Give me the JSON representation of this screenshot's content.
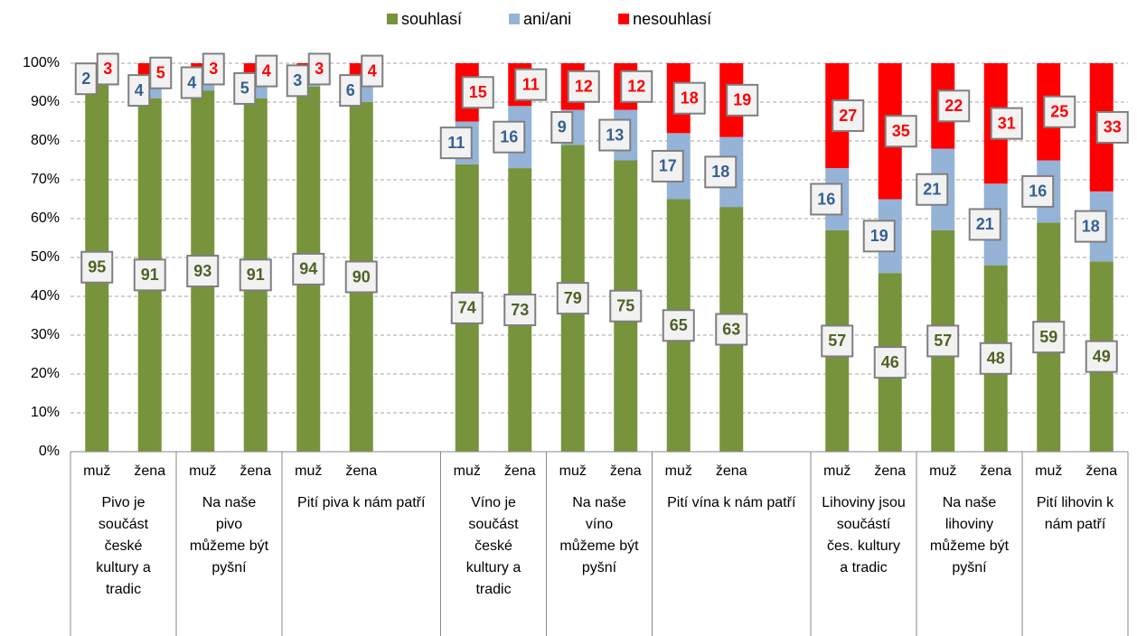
{
  "chart_data": {
    "type": "stacked_bar",
    "categories": [
      "muž",
      "žena",
      "muž",
      "žena",
      "muž",
      "žena",
      null,
      "muž",
      "žena",
      "muž",
      "žena",
      "muž",
      "žena",
      null,
      "muž",
      "žena",
      "muž",
      "žena",
      "muž",
      "žena"
    ],
    "groups": [
      "Pivo je součást české kultury a tradic",
      "Na naše pivo můžeme být pyšní",
      "Pití piva k nám patří",
      "Víno je součást české kultury a tradic",
      "Na naše víno můžeme být pyšní",
      "Pití vína k nám patří",
      "Lihoviny jsou součástí čes. kultury a tradic",
      "Na naše lihoviny můžeme být pyšní",
      "Pití lihovin k nám patří"
    ],
    "series": [
      {
        "name": "souhlasí",
        "color": "#77933c",
        "label_color": "#4f6228",
        "values": [
          95,
          91,
          93,
          91,
          94,
          90,
          null,
          74,
          73,
          79,
          75,
          65,
          63,
          null,
          57,
          46,
          57,
          48,
          59,
          49
        ]
      },
      {
        "name": "ani/ani",
        "color": "#95b3d7",
        "label_color": "#376092",
        "values": [
          2,
          4,
          4,
          5,
          3,
          6,
          null,
          11,
          16,
          9,
          13,
          17,
          18,
          null,
          16,
          19,
          21,
          21,
          16,
          18
        ]
      },
      {
        "name": "nesouhlasí",
        "color": "#ff0000",
        "label_color": "#ff0000",
        "values": [
          3,
          5,
          3,
          4,
          3,
          4,
          null,
          15,
          11,
          12,
          12,
          18,
          19,
          null,
          27,
          35,
          22,
          31,
          25,
          33
        ]
      }
    ],
    "ylim": [
      0,
      100
    ],
    "yticks": [
      {
        "value": 0,
        "label": "0%"
      },
      {
        "value": 10,
        "label": "10%"
      },
      {
        "value": 20,
        "label": "20%"
      },
      {
        "value": 30,
        "label": "30%"
      },
      {
        "value": 40,
        "label": "40%"
      },
      {
        "value": 50,
        "label": "50%"
      },
      {
        "value": 60,
        "label": "60%"
      },
      {
        "value": 70,
        "label": "70%"
      },
      {
        "value": 80,
        "label": "80%"
      },
      {
        "value": 90,
        "label": "90%"
      },
      {
        "value": 100,
        "label": "100%"
      }
    ],
    "grid": true,
    "legend": "top"
  }
}
